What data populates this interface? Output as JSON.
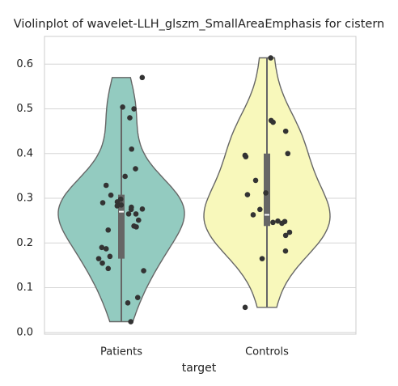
{
  "chart_data": {
    "type": "violin",
    "title": "Violinplot of wavelet-LLH_glszm_SmallAreaEmphasis for cistern",
    "x_label": "target",
    "categories": [
      "Patients",
      "Controls"
    ],
    "series": [
      {
        "name": "Patients",
        "color": "#93cbc0",
        "values": [
          0.57,
          0.504,
          0.5,
          0.48,
          0.41,
          0.366,
          0.349,
          0.329,
          0.307,
          0.298,
          0.292,
          0.29,
          0.285,
          0.283,
          0.28,
          0.276,
          0.275,
          0.265,
          0.265,
          0.251,
          0.238,
          0.236,
          0.229,
          0.19,
          0.187,
          0.17,
          0.165,
          0.155,
          0.143,
          0.138,
          0.078,
          0.066,
          0.024
        ],
        "box": {
          "min": 0.024,
          "q1": 0.165,
          "median": 0.27,
          "q3": 0.308,
          "max": 0.504
        }
      },
      {
        "name": "Controls",
        "color": "#f8f8bb",
        "values": [
          0.614,
          0.474,
          0.47,
          0.45,
          0.4,
          0.396,
          0.393,
          0.34,
          0.312,
          0.308,
          0.275,
          0.263,
          0.249,
          0.248,
          0.246,
          0.244,
          0.224,
          0.217,
          0.182,
          0.165,
          0.056
        ],
        "box": {
          "min": 0.056,
          "q1": 0.238,
          "median": 0.263,
          "q3": 0.4,
          "max": 0.614
        }
      }
    ],
    "ylim": [
      -0.004,
      0.662
    ],
    "yticks": [
      {
        "value": 0,
        "label": "0.0"
      },
      0.1,
      0.2,
      0.3,
      0.4,
      0.5,
      0.6
    ],
    "grid": true
  }
}
